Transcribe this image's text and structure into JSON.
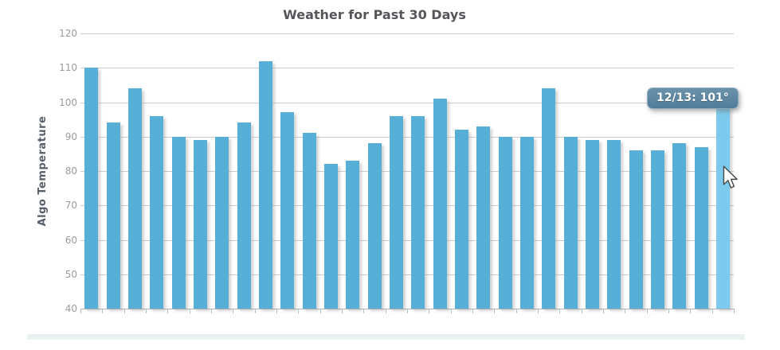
{
  "chart_data": {
    "type": "bar",
    "title": "Weather for Past 30 Days",
    "xlabel": "",
    "ylabel": "Algo Temperature",
    "ylim": [
      40,
      120
    ],
    "yticks": [
      120,
      110,
      100,
      90,
      80,
      70,
      60,
      50,
      40
    ],
    "grid": true,
    "categories_note": "30 daily bars; only the hovered bar's date is shown in the tooltip",
    "values": [
      110,
      94,
      104,
      96,
      90,
      89,
      90,
      94,
      112,
      97,
      91,
      82,
      83,
      88,
      96,
      96,
      101,
      92,
      93,
      90,
      90,
      104,
      90,
      89,
      89,
      86,
      86,
      88,
      87,
      101
    ],
    "highlighted_index": 29,
    "colors": {
      "bar": "#57aed7",
      "bar_highlight": "#7ccbee",
      "gridline": "#cbcbcb",
      "axis_line": "#aab2b8",
      "title_text": "#545659",
      "tick_text": "#9b9b9b",
      "ylabel_text": "#57606a",
      "tooltip_bg": "#5d87a1"
    }
  },
  "tooltip": {
    "text": "12/13: 101°"
  }
}
